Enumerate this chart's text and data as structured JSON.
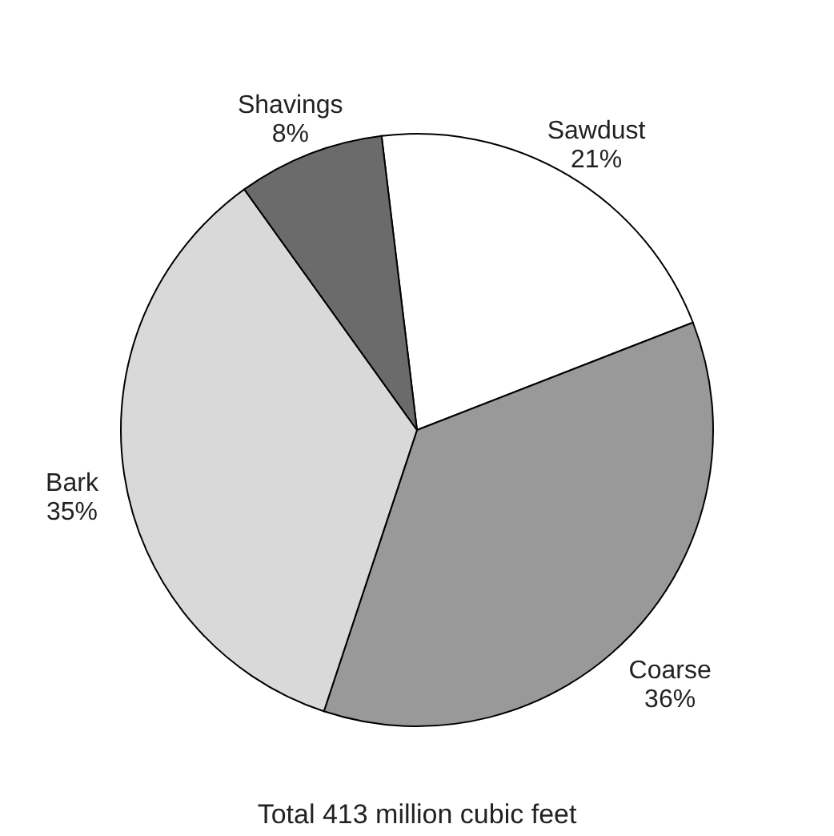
{
  "chart_data": {
    "type": "pie",
    "title": "Total 413 million cubic feet",
    "categories": [
      "Sawdust",
      "Coarse",
      "Bark",
      "Shavings"
    ],
    "values": [
      21,
      36,
      35,
      8
    ],
    "value_labels": [
      "21%",
      "36%",
      "35%",
      "8%"
    ],
    "colors": [
      "#ffffff",
      "#999999",
      "#d9d9d9",
      "#6b6b6b"
    ],
    "legend": false
  }
}
